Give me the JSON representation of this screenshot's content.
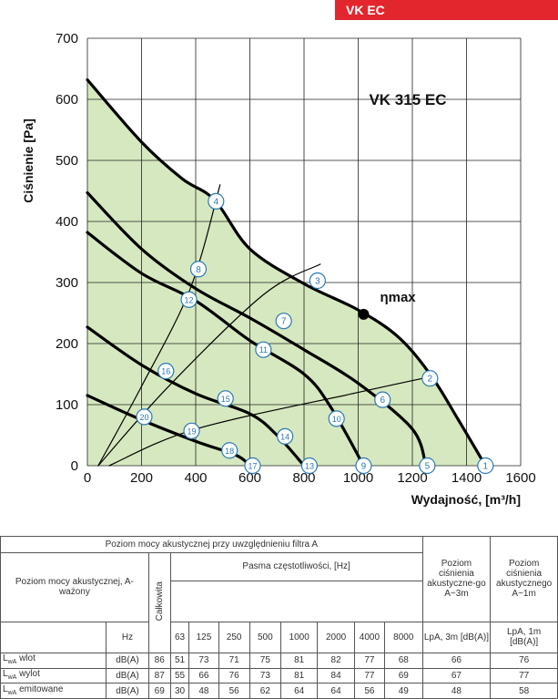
{
  "badge": "VK EC",
  "chart_data": {
    "type": "line",
    "title": "VK 315 EC",
    "xlabel": "Wydajność, [m³/h]",
    "ylabel": "Ciśnienie [Pa]",
    "xlim": [
      0,
      1600
    ],
    "ylim": [
      0,
      700
    ],
    "xticks": [
      "0",
      "200",
      "400",
      "600",
      "800",
      "1000",
      "1200",
      "1400",
      "1600"
    ],
    "yticks": [
      "0",
      "100",
      "200",
      "300",
      "400",
      "500",
      "600",
      "700"
    ],
    "grid": true,
    "eta_label": "ηmax",
    "eta_point": {
      "x": 1020,
      "y": 248
    },
    "series": [
      {
        "name": "",
        "thick": true,
        "points": [
          [
            0,
            632
          ],
          [
            200,
            530
          ],
          [
            350,
            470
          ],
          [
            470,
            435
          ],
          [
            600,
            355
          ],
          [
            800,
            298
          ],
          [
            1000,
            255
          ],
          [
            1150,
            210
          ],
          [
            1270,
            147
          ],
          [
            1370,
            75
          ],
          [
            1470,
            0
          ]
        ]
      },
      {
        "name": "",
        "thick": true,
        "points": [
          [
            0,
            447
          ],
          [
            200,
            355
          ],
          [
            400,
            290
          ],
          [
            600,
            242
          ],
          [
            800,
            190
          ],
          [
            1000,
            135
          ],
          [
            1200,
            60
          ],
          [
            1250,
            0
          ]
        ]
      },
      {
        "name": "",
        "thick": true,
        "points": [
          [
            0,
            382
          ],
          [
            200,
            315
          ],
          [
            400,
            270
          ],
          [
            600,
            205
          ],
          [
            800,
            150
          ],
          [
            900,
            95
          ],
          [
            1020,
            0
          ]
        ]
      },
      {
        "name": "",
        "thick": true,
        "points": [
          [
            0,
            227
          ],
          [
            200,
            165
          ],
          [
            400,
            118
          ],
          [
            600,
            85
          ],
          [
            700,
            50
          ],
          [
            800,
            0
          ]
        ]
      },
      {
        "name": "",
        "thick": true,
        "points": [
          [
            0,
            115
          ],
          [
            200,
            75
          ],
          [
            400,
            40
          ],
          [
            550,
            17
          ],
          [
            600,
            0
          ]
        ]
      },
      {
        "name": "",
        "thick": false,
        "points": [
          [
            40,
            0
          ],
          [
            200,
            130
          ],
          [
            380,
            290
          ],
          [
            490,
            460
          ]
        ]
      },
      {
        "name": "",
        "thick": false,
        "points": [
          [
            40,
            0
          ],
          [
            300,
            130
          ],
          [
            650,
            280
          ],
          [
            860,
            330
          ]
        ]
      },
      {
        "name": "",
        "thick": false,
        "points": [
          [
            80,
            0
          ],
          [
            400,
            60
          ],
          [
            1000,
            120
          ],
          [
            1260,
            145
          ]
        ]
      }
    ],
    "markers": [
      {
        "label": "1",
        "x": 1470,
        "y": 0
      },
      {
        "label": "2",
        "x": 1265,
        "y": 143
      },
      {
        "label": "3",
        "x": 850,
        "y": 303
      },
      {
        "label": "4",
        "x": 475,
        "y": 433
      },
      {
        "label": "5",
        "x": 1255,
        "y": 0
      },
      {
        "label": "6",
        "x": 1090,
        "y": 108
      },
      {
        "label": "7",
        "x": 725,
        "y": 237
      },
      {
        "label": "8",
        "x": 410,
        "y": 322
      },
      {
        "label": "9",
        "x": 1020,
        "y": 0
      },
      {
        "label": "10",
        "x": 920,
        "y": 77
      },
      {
        "label": "11",
        "x": 650,
        "y": 190
      },
      {
        "label": "12",
        "x": 375,
        "y": 272
      },
      {
        "label": "13",
        "x": 820,
        "y": 0
      },
      {
        "label": "14",
        "x": 730,
        "y": 48
      },
      {
        "label": "15",
        "x": 510,
        "y": 110
      },
      {
        "label": "16",
        "x": 290,
        "y": 155
      },
      {
        "label": "17",
        "x": 610,
        "y": 0
      },
      {
        "label": "18",
        "x": 525,
        "y": 25
      },
      {
        "label": "19",
        "x": 385,
        "y": 57
      },
      {
        "label": "20",
        "x": 210,
        "y": 80
      }
    ]
  },
  "table": {
    "top_header": "Poziom mocy akustycznej przy uwzględnieniu filtra A",
    "row_header": "Poziom mocy akustycznej, A-ważony",
    "total": "Całkowita",
    "bands_header": "Pasma częstotliwości, [Hz]",
    "lpa3_header": "Poziom ciśnienia akustyczne-go A~3m",
    "lpa1_header": "Poziom ciśnienia akustycznego A~1m",
    "hz": "Hz",
    "bands": [
      "63",
      "125",
      "250",
      "500",
      "1000",
      "2000",
      "4000",
      "8000"
    ],
    "lpa3_unit": "LpA, 3m [dB(A)]",
    "lpa1_unit": "LpA, 1m [dB(A)]",
    "rows": [
      {
        "sub": "wA",
        "label": "wlot",
        "unit": "dB(A)",
        "total": "86",
        "values": [
          "51",
          "73",
          "71",
          "75",
          "81",
          "82",
          "77",
          "68"
        ],
        "lpa3": "66",
        "lpa1": "76"
      },
      {
        "sub": "wA",
        "label": "wylot",
        "unit": "dB(A)",
        "total": "87",
        "values": [
          "55",
          "66",
          "76",
          "73",
          "81",
          "84",
          "77",
          "69"
        ],
        "lpa3": "67",
        "lpa1": "77"
      },
      {
        "sub": "wA",
        "label": "emitowane",
        "unit": "dB(A)",
        "total": "69",
        "values": [
          "30",
          "48",
          "56",
          "62",
          "64",
          "64",
          "56",
          "49"
        ],
        "lpa3": "48",
        "lpa1": "58"
      }
    ]
  }
}
